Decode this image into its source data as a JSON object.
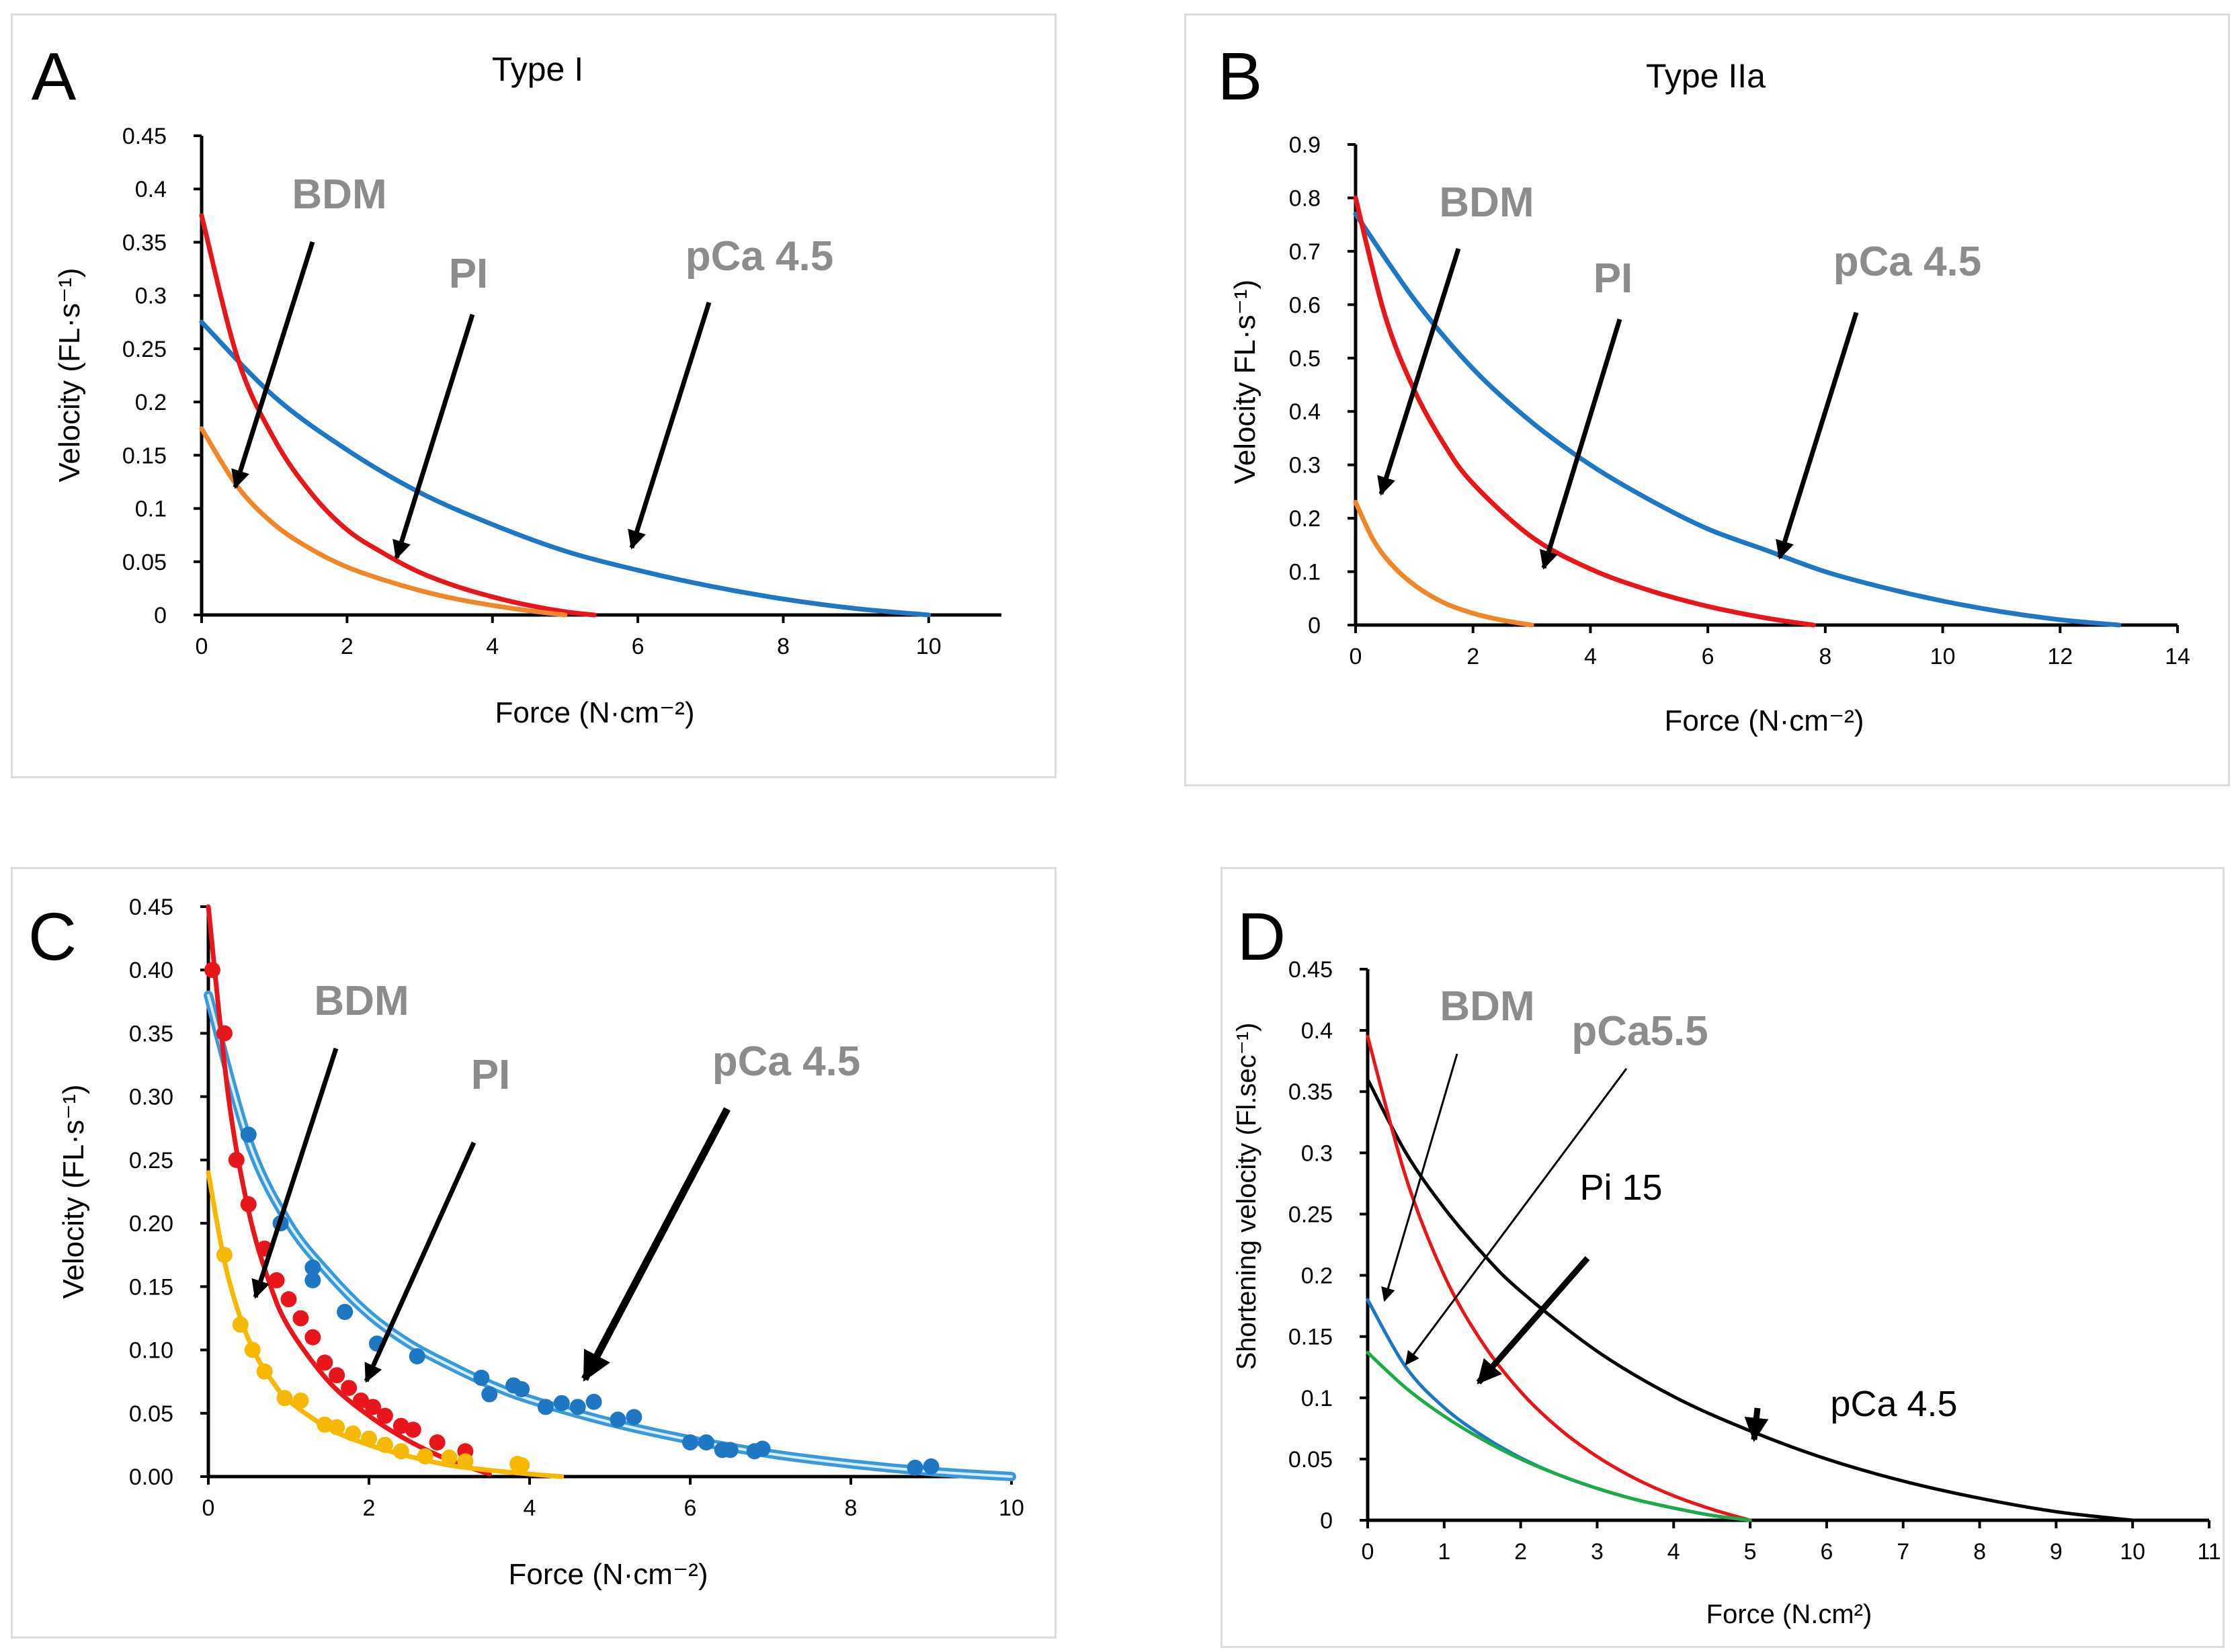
{
  "colors": {
    "blue": "#1f77c4",
    "lightblue": "#3a9ad9",
    "red": "#e8161b",
    "orange": "#f0862a",
    "yellow": "#f6b800",
    "green": "#1faa4a",
    "black": "#000000",
    "annot": "#8c8c8c"
  },
  "chart_data": [
    {
      "type": "line",
      "panel": "A",
      "title": "Type I",
      "xlabel": "Force (N·cm⁻²)",
      "ylabel": "Velocity (FL·s⁻¹)",
      "xlim": [
        0,
        11
      ],
      "ylim": [
        0,
        0.45
      ],
      "xticks": [
        "0",
        "2",
        "4",
        "6",
        "8",
        "10"
      ],
      "yticks": [
        "0",
        "0.05",
        "0.1",
        "0.15",
        "0.2",
        "0.25",
        "0.3",
        "0.35",
        "0.4",
        "0.45"
      ],
      "series": [
        {
          "name": "pCa 4.5",
          "color": "blue",
          "x": [
            0,
            1,
            2,
            3,
            4,
            5,
            6,
            7,
            8,
            9,
            10
          ],
          "y": [
            0.275,
            0.205,
            0.155,
            0.115,
            0.085,
            0.06,
            0.042,
            0.027,
            0.015,
            0.006,
            0
          ]
        },
        {
          "name": "PI",
          "color": "red",
          "x": [
            0,
            0.5,
            1,
            1.5,
            2,
            2.5,
            3,
            3.5,
            4,
            4.5,
            5,
            5.4
          ],
          "y": [
            0.375,
            0.24,
            0.165,
            0.115,
            0.08,
            0.058,
            0.04,
            0.027,
            0.017,
            0.009,
            0.003,
            0
          ]
        },
        {
          "name": "BDM",
          "color": "orange",
          "x": [
            0,
            0.5,
            1,
            1.5,
            2,
            2.5,
            3,
            3.5,
            4,
            4.5,
            5
          ],
          "y": [
            0.175,
            0.12,
            0.085,
            0.062,
            0.045,
            0.033,
            0.023,
            0.015,
            0.009,
            0.004,
            0
          ]
        }
      ],
      "annotations": [
        {
          "text": "BDM",
          "bold": true,
          "color": "annot"
        },
        {
          "text": "PI",
          "bold": true,
          "color": "annot"
        },
        {
          "text": "pCa 4.5",
          "bold": true,
          "color": "annot"
        }
      ]
    },
    {
      "type": "line",
      "panel": "B",
      "title": "Type IIa",
      "xlabel": "Force (N·cm⁻²)",
      "ylabel": "Velocity FL·s⁻¹)",
      "xlim": [
        0,
        14
      ],
      "ylim": [
        0,
        0.9
      ],
      "xticks": [
        "0",
        "2",
        "4",
        "6",
        "8",
        "10",
        "12",
        "14"
      ],
      "yticks": [
        "0",
        "0.1",
        "0.2",
        "0.3",
        "0.4",
        "0.5",
        "0.6",
        "0.7",
        "0.8",
        "0.9"
      ],
      "series": [
        {
          "name": "pCa 4.5",
          "color": "blue",
          "x": [
            0,
            1,
            2,
            3,
            4,
            5,
            6,
            7,
            8,
            9,
            10,
            11,
            12,
            13
          ],
          "y": [
            0.77,
            0.61,
            0.48,
            0.38,
            0.3,
            0.235,
            0.18,
            0.14,
            0.1,
            0.07,
            0.045,
            0.025,
            0.01,
            0
          ]
        },
        {
          "name": "PI",
          "color": "red",
          "x": [
            0,
            0.5,
            1,
            1.5,
            2,
            3,
            4,
            5,
            6,
            7,
            7.8
          ],
          "y": [
            0.8,
            0.58,
            0.44,
            0.34,
            0.265,
            0.165,
            0.105,
            0.065,
            0.035,
            0.013,
            0
          ]
        },
        {
          "name": "BDM",
          "color": "orange",
          "x": [
            0,
            0.3,
            0.6,
            1,
            1.5,
            2,
            2.5,
            3
          ],
          "y": [
            0.23,
            0.16,
            0.115,
            0.075,
            0.042,
            0.022,
            0.009,
            0
          ]
        }
      ],
      "annotations": [
        {
          "text": "BDM",
          "bold": true,
          "color": "annot"
        },
        {
          "text": "PI",
          "bold": true,
          "color": "annot"
        },
        {
          "text": "pCa 4.5",
          "bold": true,
          "color": "annot"
        }
      ]
    },
    {
      "type": "scatter",
      "panel": "C",
      "title": "",
      "xlabel": "Force (N·cm⁻²)",
      "ylabel": "Velocity (FL·s⁻¹)",
      "xlim": [
        0,
        10
      ],
      "ylim": [
        0,
        0.45
      ],
      "xticks": [
        "0",
        "2",
        "4",
        "6",
        "8",
        "10"
      ],
      "yticks": [
        "0.00",
        "0.05",
        "0.10",
        "0.15",
        "0.20",
        "0.25",
        "0.30",
        "0.35",
        "0.40",
        "0.45"
      ],
      "series": [
        {
          "name": "pCa 4.5",
          "color": "lightblue",
          "fit_x": [
            0,
            0.5,
            1,
            1.5,
            2,
            2.5,
            3,
            3.5,
            4,
            5,
            6,
            7,
            8,
            9,
            10
          ],
          "fit_y": [
            0.38,
            0.265,
            0.2,
            0.16,
            0.128,
            0.105,
            0.088,
            0.073,
            0.061,
            0.043,
            0.029,
            0.018,
            0.01,
            0.004,
            0
          ],
          "points_x": [
            0.5,
            0.9,
            1.3,
            1.3,
            1.7,
            2.1,
            2.6,
            3.4,
            3.5,
            3.8,
            3.9,
            4.2,
            4.4,
            4.6,
            4.8,
            5.1,
            5.3,
            6.0,
            6.2,
            6.4,
            6.5,
            6.8,
            6.9,
            8.8,
            9.0
          ],
          "points_y": [
            0.27,
            0.2,
            0.165,
            0.155,
            0.13,
            0.105,
            0.095,
            0.078,
            0.065,
            0.072,
            0.069,
            0.055,
            0.058,
            0.055,
            0.059,
            0.045,
            0.047,
            0.027,
            0.027,
            0.021,
            0.021,
            0.02,
            0.022,
            0.007,
            0.008
          ]
        },
        {
          "name": "PI",
          "color": "red",
          "fit_x": [
            0,
            0.25,
            0.5,
            0.75,
            1,
            1.5,
            2,
            2.5,
            3,
            3.5
          ],
          "fit_y": [
            0.45,
            0.3,
            0.21,
            0.155,
            0.118,
            0.075,
            0.048,
            0.028,
            0.013,
            0.002
          ],
          "points_x": [
            0.05,
            0.2,
            0.35,
            0.5,
            0.7,
            0.85,
            1.0,
            1.15,
            1.3,
            1.45,
            1.6,
            1.75,
            1.9,
            2.05,
            2.2,
            2.4,
            2.55,
            2.85,
            3.2
          ],
          "points_y": [
            0.4,
            0.35,
            0.25,
            0.215,
            0.18,
            0.155,
            0.14,
            0.125,
            0.11,
            0.09,
            0.08,
            0.07,
            0.06,
            0.055,
            0.048,
            0.04,
            0.037,
            0.027,
            0.02
          ]
        },
        {
          "name": "BDM",
          "color": "yellow",
          "fit_x": [
            0,
            0.2,
            0.4,
            0.6,
            0.8,
            1,
            1.5,
            2,
            2.5,
            3,
            3.5,
            4,
            4.4
          ],
          "fit_y": [
            0.24,
            0.17,
            0.125,
            0.095,
            0.075,
            0.06,
            0.038,
            0.025,
            0.016,
            0.009,
            0.005,
            0.002,
            0
          ],
          "points_x": [
            0.2,
            0.4,
            0.55,
            0.7,
            0.95,
            1.15,
            1.45,
            1.6,
            1.8,
            2.0,
            2.2,
            2.4,
            2.7,
            3.0,
            3.2,
            3.85,
            3.9
          ],
          "points_y": [
            0.175,
            0.12,
            0.1,
            0.083,
            0.062,
            0.06,
            0.041,
            0.039,
            0.034,
            0.03,
            0.025,
            0.02,
            0.016,
            0.015,
            0.012,
            0.01,
            0.009
          ]
        }
      ],
      "annotations": [
        {
          "text": "BDM",
          "bold": true,
          "color": "annot"
        },
        {
          "text": "PI",
          "bold": true,
          "color": "annot"
        },
        {
          "text": "pCa 4.5",
          "bold": true,
          "color": "annot"
        }
      ]
    },
    {
      "type": "line",
      "panel": "D",
      "title": "",
      "xlabel": "Force (N.cm²)",
      "ylabel": "Shortening velocity (Fl.sec⁻¹)",
      "xlim": [
        0,
        11
      ],
      "ylim": [
        0,
        0.45
      ],
      "xticks": [
        "0",
        "1",
        "2",
        "3",
        "4",
        "5",
        "6",
        "7",
        "8",
        "9",
        "10",
        "11"
      ],
      "yticks": [
        "0",
        "0.05",
        "0.1",
        "0.15",
        "0.2",
        "0.25",
        "0.3",
        "0.35",
        "0.4",
        "0.45"
      ],
      "series": [
        {
          "name": "pCa 4.5",
          "color": "black",
          "x": [
            0,
            0.5,
            1,
            1.5,
            2,
            3,
            4,
            5,
            6,
            7,
            8,
            9,
            10
          ],
          "y": [
            0.36,
            0.3,
            0.255,
            0.218,
            0.187,
            0.138,
            0.101,
            0.073,
            0.05,
            0.032,
            0.018,
            0.007,
            0
          ]
        },
        {
          "name": "Pi 15",
          "color": "red",
          "x": [
            0,
            0.5,
            1,
            1.5,
            2,
            2.5,
            3,
            3.5,
            4,
            4.5,
            5
          ],
          "y": [
            0.395,
            0.28,
            0.2,
            0.145,
            0.105,
            0.075,
            0.052,
            0.034,
            0.02,
            0.009,
            0
          ]
        },
        {
          "name": "pCa5.5",
          "color": "blue",
          "x": [
            0,
            0.5,
            1,
            1.5,
            2,
            2.5,
            3,
            3.5,
            4,
            4.5,
            5
          ],
          "y": [
            0.18,
            0.125,
            0.092,
            0.069,
            0.051,
            0.037,
            0.026,
            0.017,
            0.01,
            0.004,
            0
          ]
        },
        {
          "name": "BDM",
          "color": "green",
          "x": [
            0,
            0.5,
            1,
            1.5,
            2,
            2.5,
            3,
            3.5,
            4,
            4.5,
            5
          ],
          "y": [
            0.137,
            0.108,
            0.085,
            0.066,
            0.05,
            0.037,
            0.026,
            0.017,
            0.01,
            0.004,
            0
          ]
        }
      ],
      "annotations": [
        {
          "text": "BDM",
          "bold": true,
          "color": "annot"
        },
        {
          "text": "pCa5.5",
          "bold": true,
          "color": "annot"
        },
        {
          "text": "Pi 15",
          "bold": false,
          "color": "black"
        },
        {
          "text": "pCa 4.5",
          "bold": false,
          "color": "black"
        }
      ]
    }
  ],
  "panel_letters": [
    "A",
    "B",
    "C",
    "D"
  ]
}
